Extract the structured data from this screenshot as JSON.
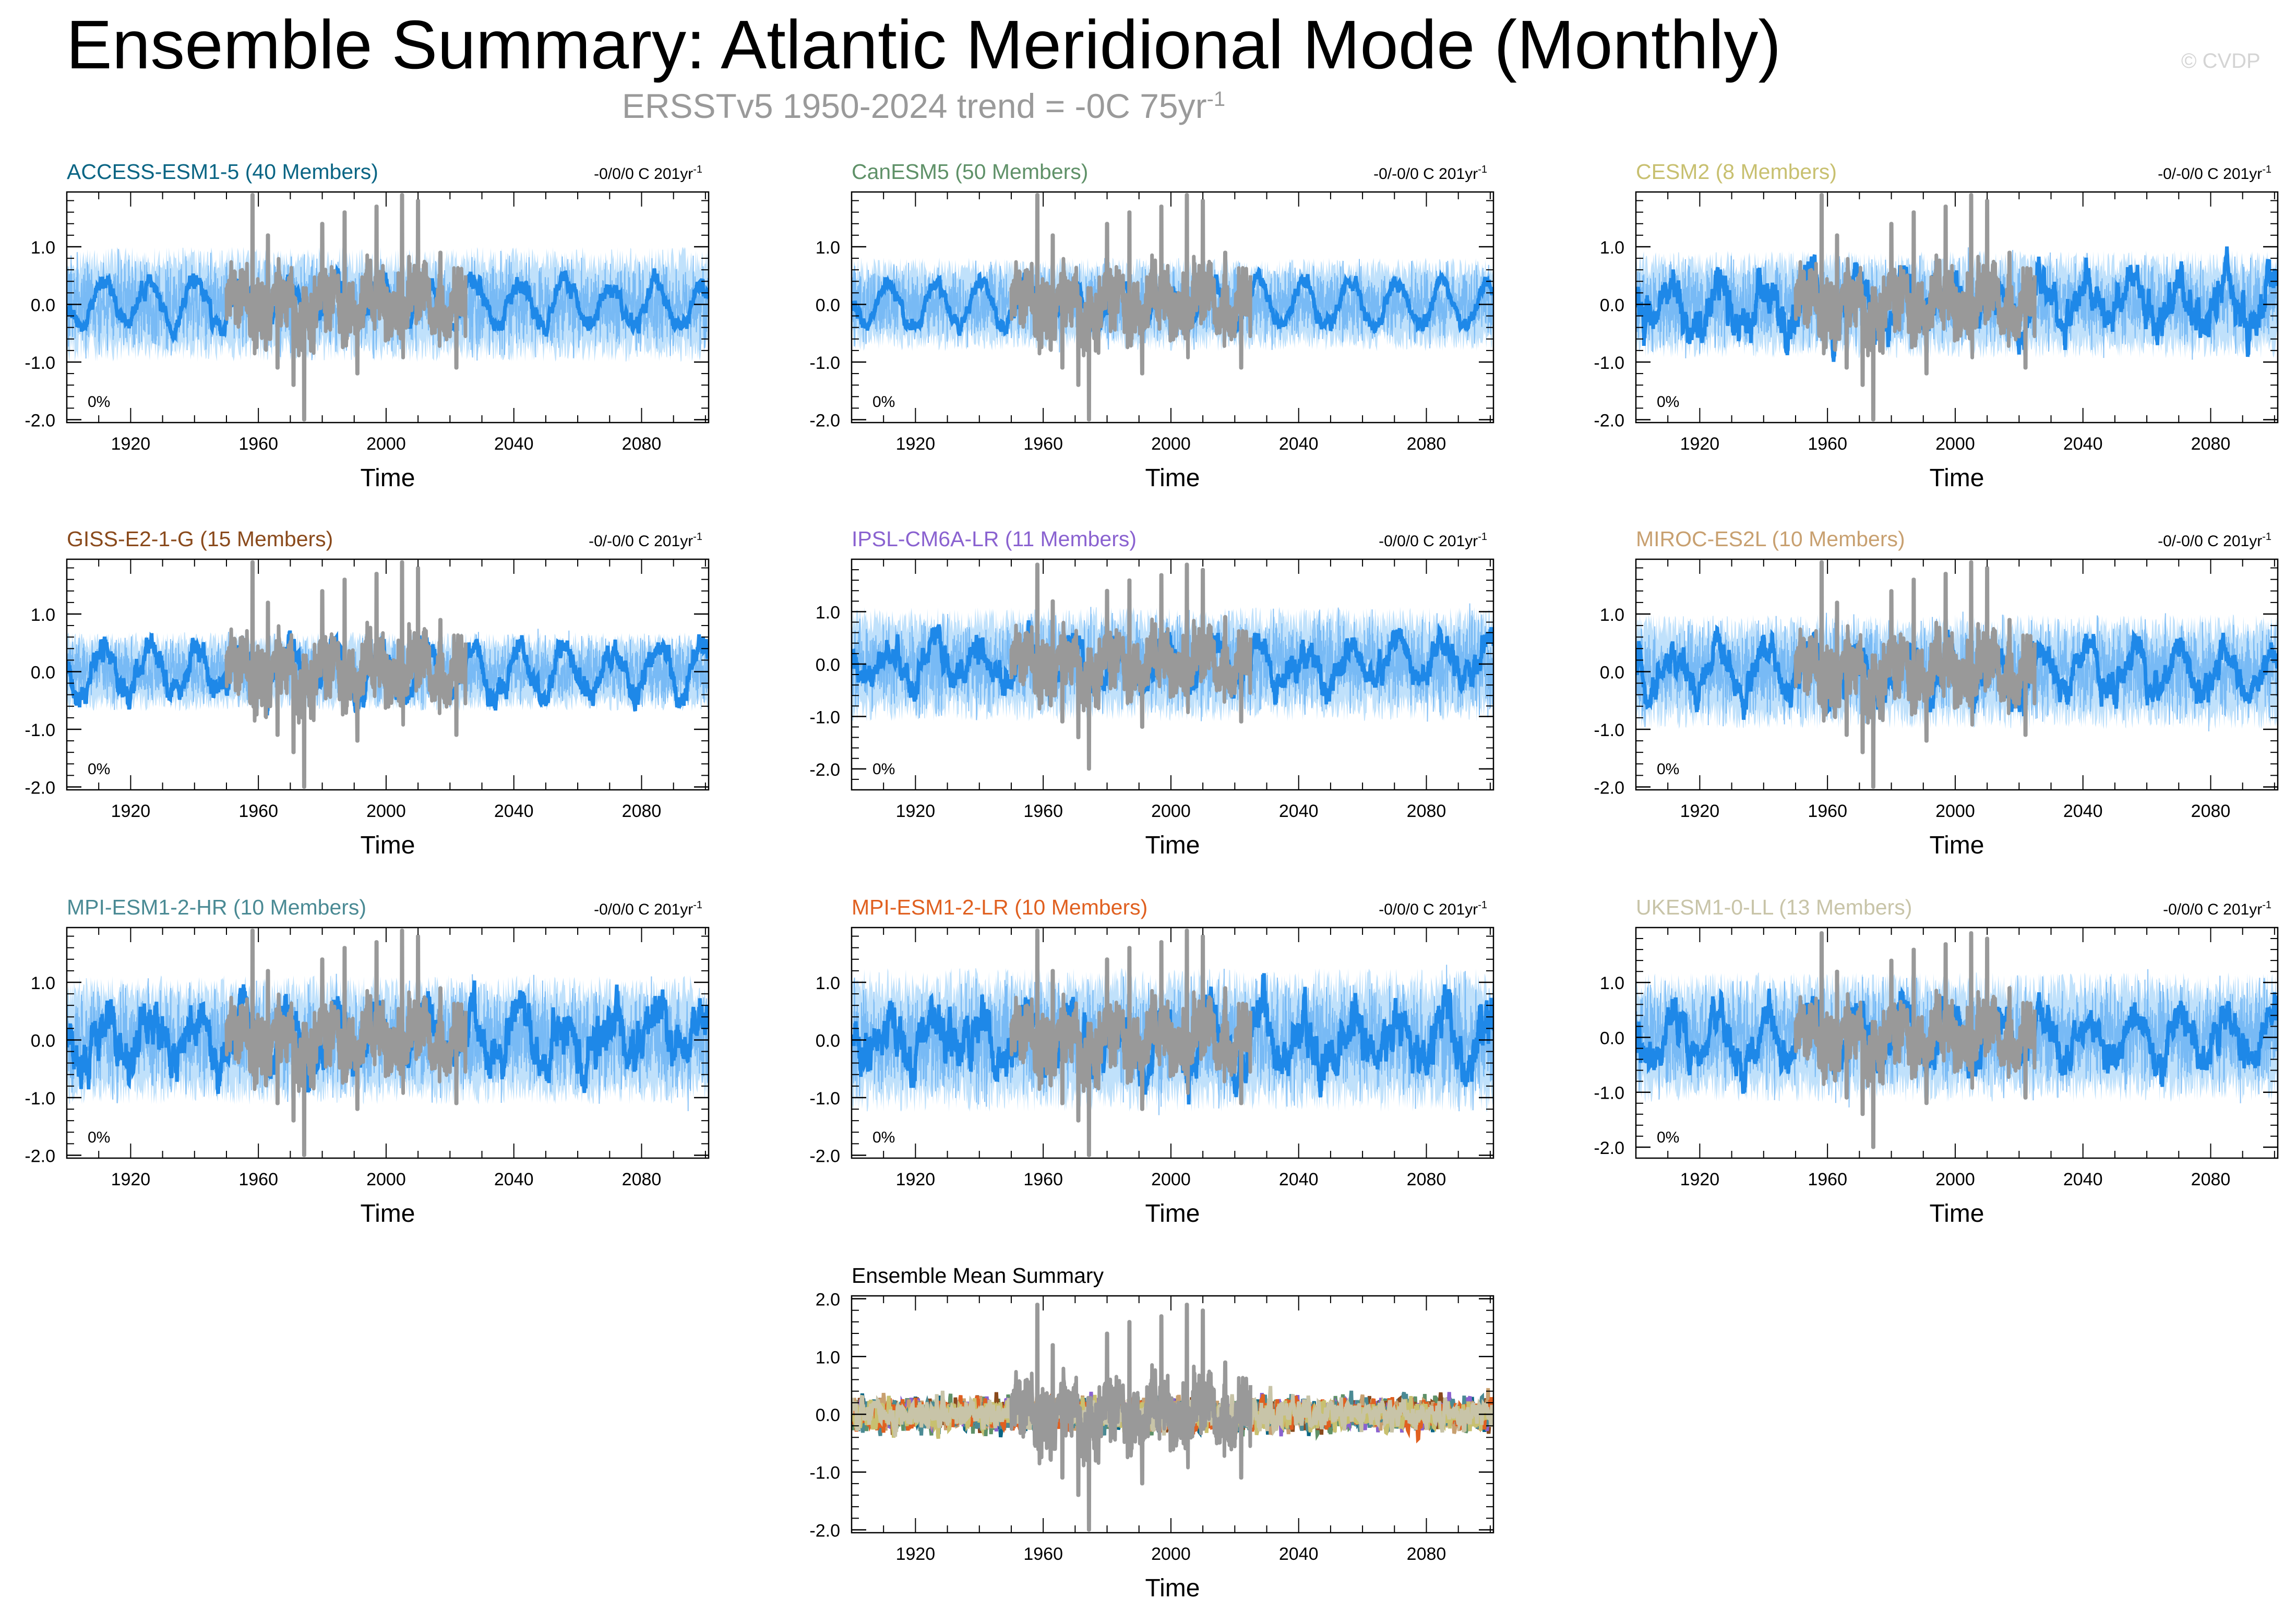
{
  "header": {
    "title": "Ensemble Summary: Atlantic Meridional Mode (Monthly)",
    "subtitle_main": "ERSSTv5 1950-2024 trend = -0C 75yr",
    "subtitle_exp": "-1",
    "credit": "© CVDP"
  },
  "colors": {
    "observations": "#999999",
    "ensemble_mean": "#1e88e8",
    "ensemble_spread": "#8cc8f8"
  },
  "chart_data": [
    {
      "type": "line",
      "title": "ACCESS-ESM1-5 (40 Members)",
      "title_color": "#0a6584",
      "trend": "-0/0/0 C 201yr",
      "trend_exp": "-1",
      "percent": "0%",
      "xlabel": "Time",
      "xlim": [
        1900,
        2101
      ],
      "ylim": [
        -2.05,
        1.95
      ],
      "xticks": [
        "1920",
        "1960",
        "2000",
        "2040",
        "2080"
      ],
      "yticks": [
        "-2.0",
        "-1.0",
        "0.0",
        "1.0"
      ],
      "series": [
        {
          "name": "",
          "color": "#1e88e8",
          "spread": 0.32,
          "smooth": 0.06
        },
        {
          "name": "",
          "color": "#999999"
        }
      ]
    },
    {
      "type": "line",
      "title": "CanESM5 (50 Members)",
      "title_color": "#5f9168",
      "trend": "-0/-0/0 C 201yr",
      "trend_exp": "-1",
      "percent": "0%",
      "xlabel": "Time",
      "xlim": [
        1900,
        2101
      ],
      "ylim": [
        -2.05,
        1.95
      ],
      "xticks": [
        "1920",
        "1960",
        "2000",
        "2040",
        "2080"
      ],
      "yticks": [
        "-2.0",
        "-1.0",
        "0.0",
        "1.0"
      ],
      "series": [
        {
          "name": "",
          "color": "#1e88e8",
          "spread": 0.26,
          "smooth": 0.05
        },
        {
          "name": "",
          "color": "#999999"
        }
      ]
    },
    {
      "type": "line",
      "title": "CESM2 (8 Members)",
      "title_color": "#c8c070",
      "trend": "-0/-0/0 C 201yr",
      "trend_exp": "-1",
      "percent": "0%",
      "xlabel": "Time",
      "xlim": [
        1900,
        2101
      ],
      "ylim": [
        -2.05,
        1.95
      ],
      "xticks": [
        "1920",
        "1960",
        "2000",
        "2040",
        "2080"
      ],
      "yticks": [
        "-2.0",
        "-1.0",
        "0.0",
        "1.0"
      ],
      "series": [
        {
          "name": "",
          "color": "#1e88e8",
          "spread": 0.3,
          "smooth": 0.12
        },
        {
          "name": "",
          "color": "#999999"
        }
      ]
    },
    {
      "type": "line",
      "title": "GISS-E2-1-G (15 Members)",
      "title_color": "#8a4a1c",
      "trend": "-0/-0/0 C 201yr",
      "trend_exp": "-1",
      "percent": "0%",
      "xlabel": "Time",
      "xlim": [
        1900,
        2101
      ],
      "ylim": [
        -2.05,
        1.95
      ],
      "xticks": [
        "1920",
        "1960",
        "2000",
        "2040",
        "2080"
      ],
      "yticks": [
        "-2.0",
        "-1.0",
        "0.0",
        "1.0"
      ],
      "series": [
        {
          "name": "",
          "color": "#1e88e8",
          "spread": 0.22,
          "smooth": 0.08
        },
        {
          "name": "",
          "color": "#999999"
        }
      ]
    },
    {
      "type": "line",
      "title": "IPSL-CM6A-LR (11 Members)",
      "title_color": "#8a62d0",
      "trend": "-0/0/0 C 201yr",
      "trend_exp": "-1",
      "percent": "0%",
      "xlabel": "Time",
      "xlim": [
        1900,
        2101
      ],
      "ylim": [
        -2.4,
        2.0
      ],
      "xticks": [
        "1920",
        "1960",
        "2000",
        "2040",
        "2080"
      ],
      "yticks": [
        "-2.0",
        "-1.0",
        "0.0",
        "1.0"
      ],
      "series": [
        {
          "name": "",
          "color": "#1e88e8",
          "spread": 0.35,
          "smooth": 0.1
        },
        {
          "name": "",
          "color": "#999999"
        }
      ]
    },
    {
      "type": "line",
      "title": "MIROC-ES2L (10 Members)",
      "title_color": "#c8a070",
      "trend": "-0/-0/0 C 201yr",
      "trend_exp": "-1",
      "percent": "0%",
      "xlabel": "Time",
      "xlim": [
        1900,
        2101
      ],
      "ylim": [
        -2.05,
        1.95
      ],
      "xticks": [
        "1920",
        "1960",
        "2000",
        "2040",
        "2080"
      ],
      "yticks": [
        "-2.0",
        "-1.0",
        "0.0",
        "1.0"
      ],
      "series": [
        {
          "name": "",
          "color": "#1e88e8",
          "spread": 0.32,
          "smooth": 0.1
        },
        {
          "name": "",
          "color": "#999999"
        }
      ]
    },
    {
      "type": "line",
      "title": "MPI-ESM1-2-HR (10 Members)",
      "title_color": "#4a8a94",
      "trend": "-0/0/0 C 201yr",
      "trend_exp": "-1",
      "percent": "0%",
      "xlabel": "Time",
      "xlim": [
        1900,
        2101
      ],
      "ylim": [
        -2.05,
        1.95
      ],
      "xticks": [
        "1920",
        "1960",
        "2000",
        "2040",
        "2080"
      ],
      "yticks": [
        "-2.0",
        "-1.0",
        "0.0",
        "1.0"
      ],
      "series": [
        {
          "name": "",
          "color": "#1e88e8",
          "spread": 0.36,
          "smooth": 0.14
        },
        {
          "name": "",
          "color": "#999999"
        }
      ]
    },
    {
      "type": "line",
      "title": "MPI-ESM1-2-LR (10 Members)",
      "title_color": "#e06020",
      "trend": "-0/0/0 C 201yr",
      "trend_exp": "-1",
      "percent": "0%",
      "xlabel": "Time",
      "xlim": [
        1900,
        2101
      ],
      "ylim": [
        -2.05,
        1.95
      ],
      "xticks": [
        "1920",
        "1960",
        "2000",
        "2040",
        "2080"
      ],
      "yticks": [
        "-2.0",
        "-1.0",
        "0.0",
        "1.0"
      ],
      "series": [
        {
          "name": "",
          "color": "#1e88e8",
          "spread": 0.4,
          "smooth": 0.15
        },
        {
          "name": "",
          "color": "#999999"
        }
      ]
    },
    {
      "type": "line",
      "title": "UKESM1-0-LL (13 Members)",
      "title_color": "#c8c4a8",
      "trend": "-0/0/0 C 201yr",
      "trend_exp": "-1",
      "percent": "0%",
      "xlabel": "Time",
      "xlim": [
        1900,
        2101
      ],
      "ylim": [
        -2.2,
        2.0
      ],
      "xticks": [
        "1920",
        "1960",
        "2000",
        "2040",
        "2080"
      ],
      "yticks": [
        "-2.0",
        "-1.0",
        "0.0",
        "1.0"
      ],
      "series": [
        {
          "name": "",
          "color": "#1e88e8",
          "spread": 0.38,
          "smooth": 0.12
        },
        {
          "name": "",
          "color": "#999999"
        }
      ]
    },
    {
      "type": "line",
      "title": "Ensemble Mean Summary",
      "title_color": "#000000",
      "xlabel": "Time",
      "xlim": [
        1900,
        2101
      ],
      "ylim": [
        -2.05,
        2.05
      ],
      "xticks": [
        "1920",
        "1960",
        "2000",
        "2040",
        "2080"
      ],
      "yticks": [
        "-2.0",
        "-1.0",
        "0.0",
        "1.0",
        "2.0"
      ],
      "series": [
        {
          "name": "",
          "color": "#0a6584"
        },
        {
          "name": "",
          "color": "#5f9168"
        },
        {
          "name": "",
          "color": "#8a4a1c"
        },
        {
          "name": "",
          "color": "#8a62d0"
        },
        {
          "name": "",
          "color": "#c8a070"
        },
        {
          "name": "",
          "color": "#4a8a94"
        },
        {
          "name": "",
          "color": "#e06020"
        },
        {
          "name": "",
          "color": "#c8c070"
        },
        {
          "name": "",
          "color": "#c8c4a8"
        },
        {
          "name": "",
          "color": "#999999"
        }
      ]
    }
  ]
}
